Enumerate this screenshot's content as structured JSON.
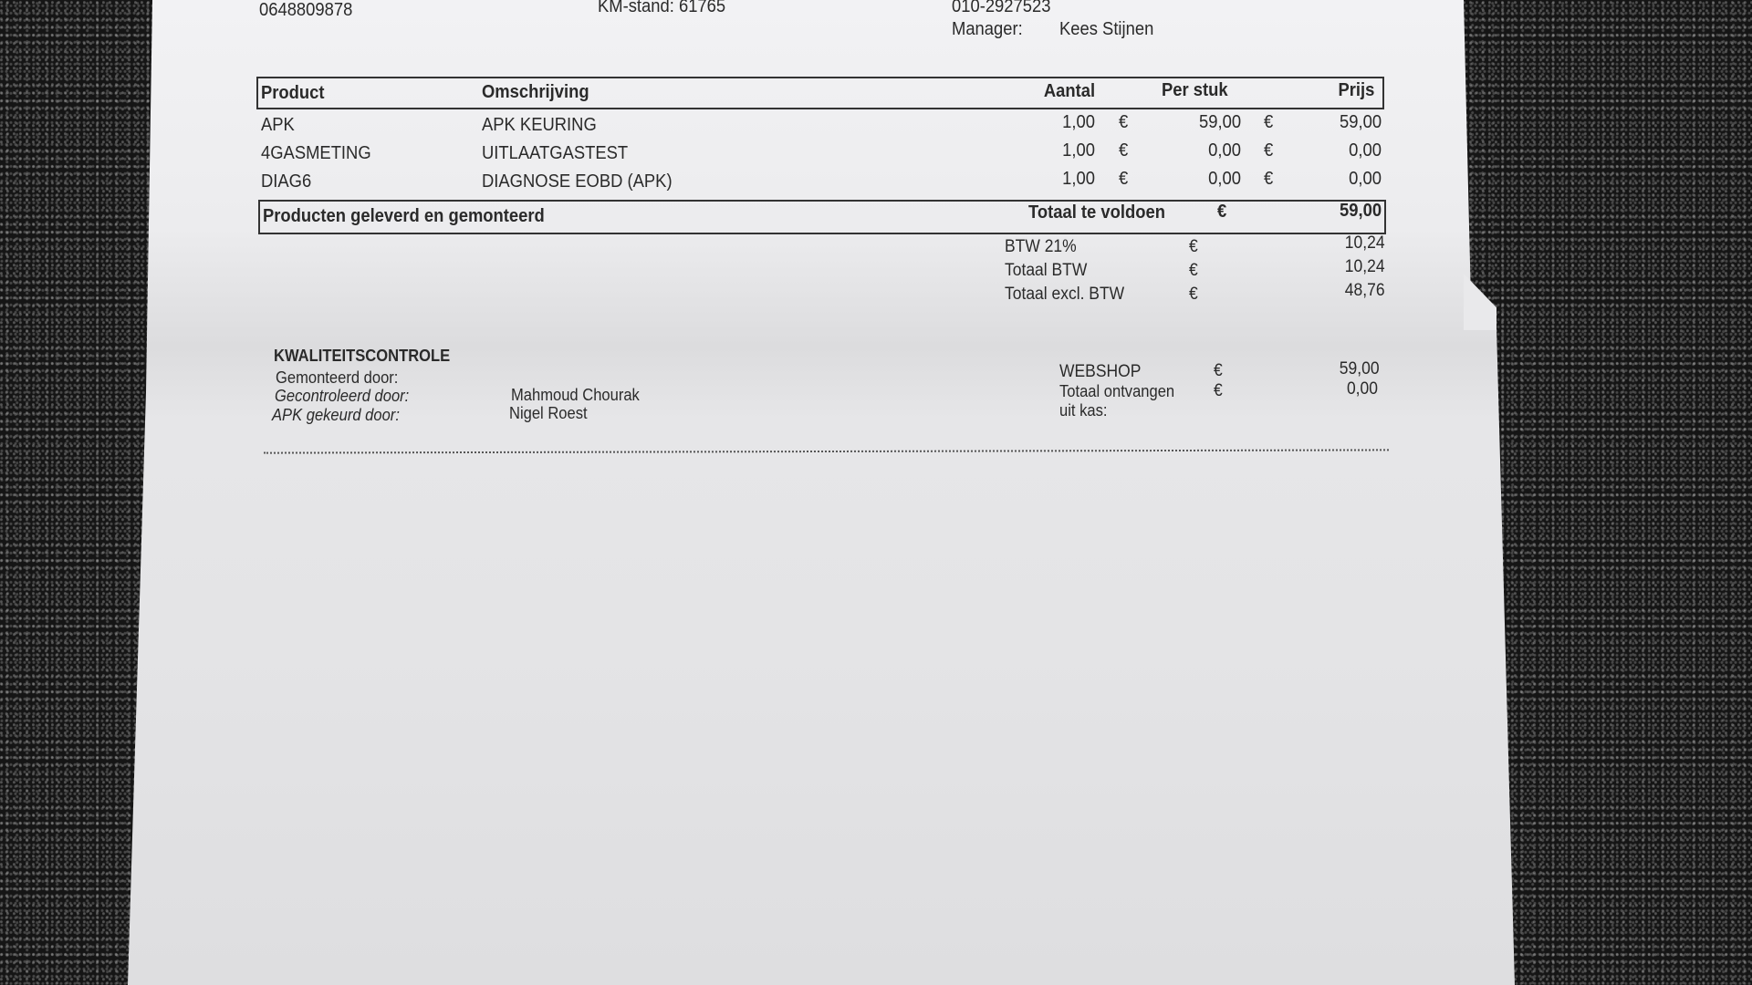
{
  "header": {
    "phone": "0648809878",
    "km_stand": "KM-stand: 61765",
    "phone2": "010-2927523",
    "manager_label": "Manager:",
    "manager_name": "Kees  Stijnen"
  },
  "table": {
    "columns": [
      "Product",
      "Omschrijving",
      "Aantal",
      "Per stuk",
      "Prijs"
    ],
    "currency": "€",
    "rows": [
      {
        "product": "APK",
        "description": "APK KEURING",
        "qty": "1,00",
        "unit": "59,00",
        "price": "59,00"
      },
      {
        "product": "4GASMETING",
        "description": "UITLAATGASTEST",
        "qty": "1,00",
        "unit": "0,00",
        "price": "0,00"
      },
      {
        "product": "DIAG6",
        "description": "DIAGNOSE EOBD (APK)",
        "qty": "1,00",
        "unit": "0,00",
        "price": "0,00"
      }
    ],
    "footer_note": "Producten geleverd en gemonteerd",
    "total_label": "Totaal te voldoen",
    "total": "59,00"
  },
  "tax": [
    {
      "label": "BTW 21%",
      "value": "10,24"
    },
    {
      "label": "Totaal BTW",
      "value": "10,24"
    },
    {
      "label": "Totaal excl. BTW",
      "value": "48,76"
    }
  ],
  "quality": {
    "title": "KWALITEITSCONTROLE",
    "mounted_label": "Gemonteerd door:",
    "checked_label": "Gecontroleerd door:",
    "checked_name": "Mahmoud  Chourak",
    "apk_label": "APK gekeurd door:",
    "apk_name": "Nigel  Roest"
  },
  "payment": {
    "webshop_label": "WEBSHOP",
    "webshop_value": "59,00",
    "received_label": "Totaal ontvangen",
    "received_label2": "uit kas:",
    "received_value": "0,00"
  }
}
